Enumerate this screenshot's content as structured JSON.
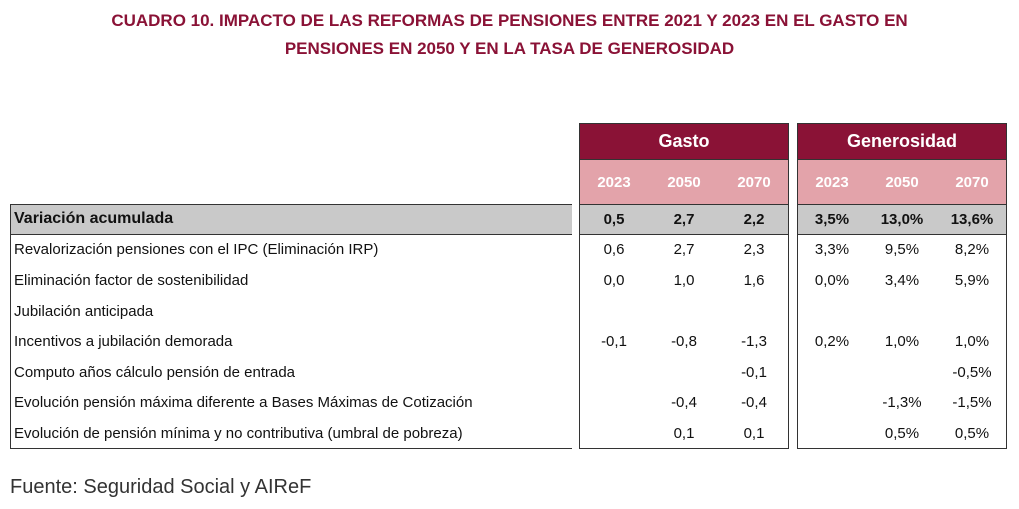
{
  "title": [
    "CUADRO 10.  IMPACTO DE LAS REFORMAS DE PENSIONES ENTRE 2021 Y 2023 EN EL GASTO EN",
    "PENSIONES EN 2050 Y EN LA TASA DE GENEROSIDAD"
  ],
  "table": {
    "groups": [
      {
        "name": "Gasto",
        "years": [
          "2023",
          "2050",
          "2070"
        ]
      },
      {
        "name": "Generosidad",
        "years": [
          "2023",
          "2050",
          "2070"
        ]
      }
    ],
    "rows": [
      {
        "label": "Variación acumulada",
        "values": [
          "0,5",
          "2,7",
          "2,2",
          "3,5%",
          "13,0%",
          "13,6%"
        ]
      },
      {
        "label": "Revalorización pensiones con el IPC (Eliminación IRP)",
        "values": [
          "0,6",
          "2,7",
          "2,3",
          "3,3%",
          "9,5%",
          "8,2%"
        ]
      },
      {
        "label": "Eliminación factor de sostenibilidad",
        "values": [
          "0,0",
          "1,0",
          "1,6",
          "0,0%",
          "3,4%",
          "5,9%"
        ]
      },
      {
        "label": "Jubilación anticipada",
        "values": [
          null,
          null,
          null,
          null,
          null,
          null
        ]
      },
      {
        "label": "Incentivos a jubilación demorada",
        "values": [
          "-0,1",
          "-0,8",
          "-1,3",
          "0,2%",
          "1,0%",
          "1,0%"
        ]
      },
      {
        "label": "Computo años cálculo pensión de entrada",
        "values": [
          null,
          null,
          "-0,1",
          null,
          null,
          "-0,5%"
        ]
      },
      {
        "label": "Evolución pensión máxima diferente a Bases Máximas de Cotización",
        "values": [
          null,
          "-0,4",
          "-0,4",
          null,
          "-1,3%",
          "-1,5%"
        ]
      },
      {
        "label": "Evolución de pensión mínima y no contributiva (umbral de pobreza)",
        "values": [
          null,
          "0,1",
          "0,1",
          null,
          "0,5%",
          "0,5%"
        ]
      }
    ]
  },
  "source": "Fuente: Seguridad Social y AIReF"
}
